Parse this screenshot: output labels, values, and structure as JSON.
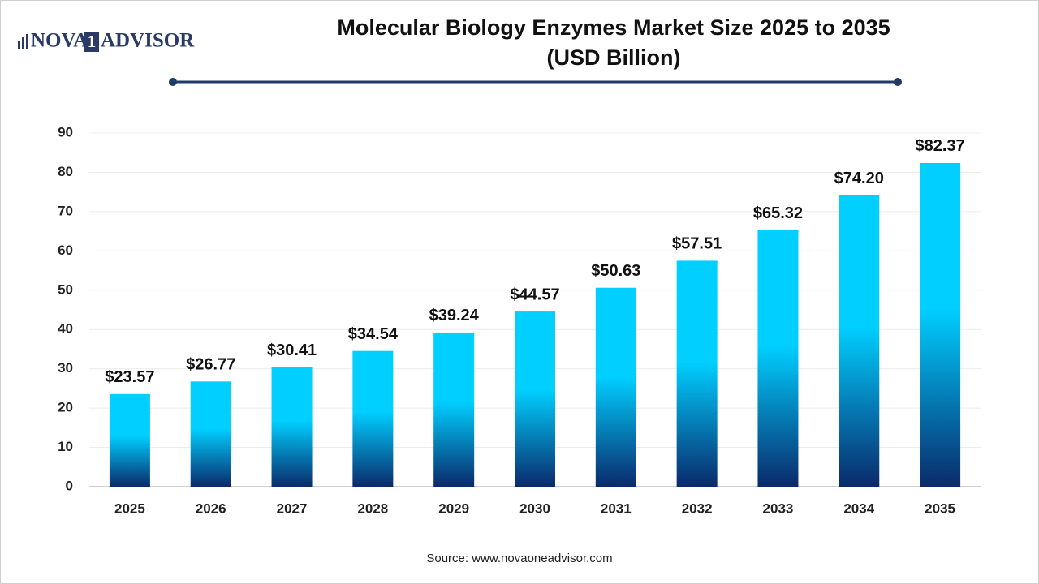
{
  "logo": {
    "left": "NOVA",
    "mark": "1",
    "right": "ADVISOR"
  },
  "chart_data": {
    "type": "bar",
    "title": "Molecular Biology Enzymes Market Size 2025 to 2035",
    "subtitle": "(USD Billion)",
    "categories": [
      "2025",
      "2026",
      "2027",
      "2028",
      "2029",
      "2030",
      "2031",
      "2032",
      "2033",
      "2034",
      "2035"
    ],
    "values": [
      23.57,
      26.77,
      30.41,
      34.54,
      39.24,
      44.57,
      50.63,
      57.51,
      65.32,
      74.2,
      82.37
    ],
    "value_labels": [
      "$23.57",
      "$26.77",
      "$30.41",
      "$34.54",
      "$39.24",
      "$44.57",
      "$50.63",
      "$57.51",
      "$65.32",
      "$74.20",
      "$82.37"
    ],
    "colors": [
      "#00cfff",
      "#0a2a6b"
    ],
    "ylim": [
      0,
      90
    ],
    "yticks": [
      0,
      10,
      20,
      30,
      40,
      50,
      60,
      70,
      80,
      90
    ],
    "grid": true,
    "source": "Source: www.novaoneadvisor.com"
  }
}
